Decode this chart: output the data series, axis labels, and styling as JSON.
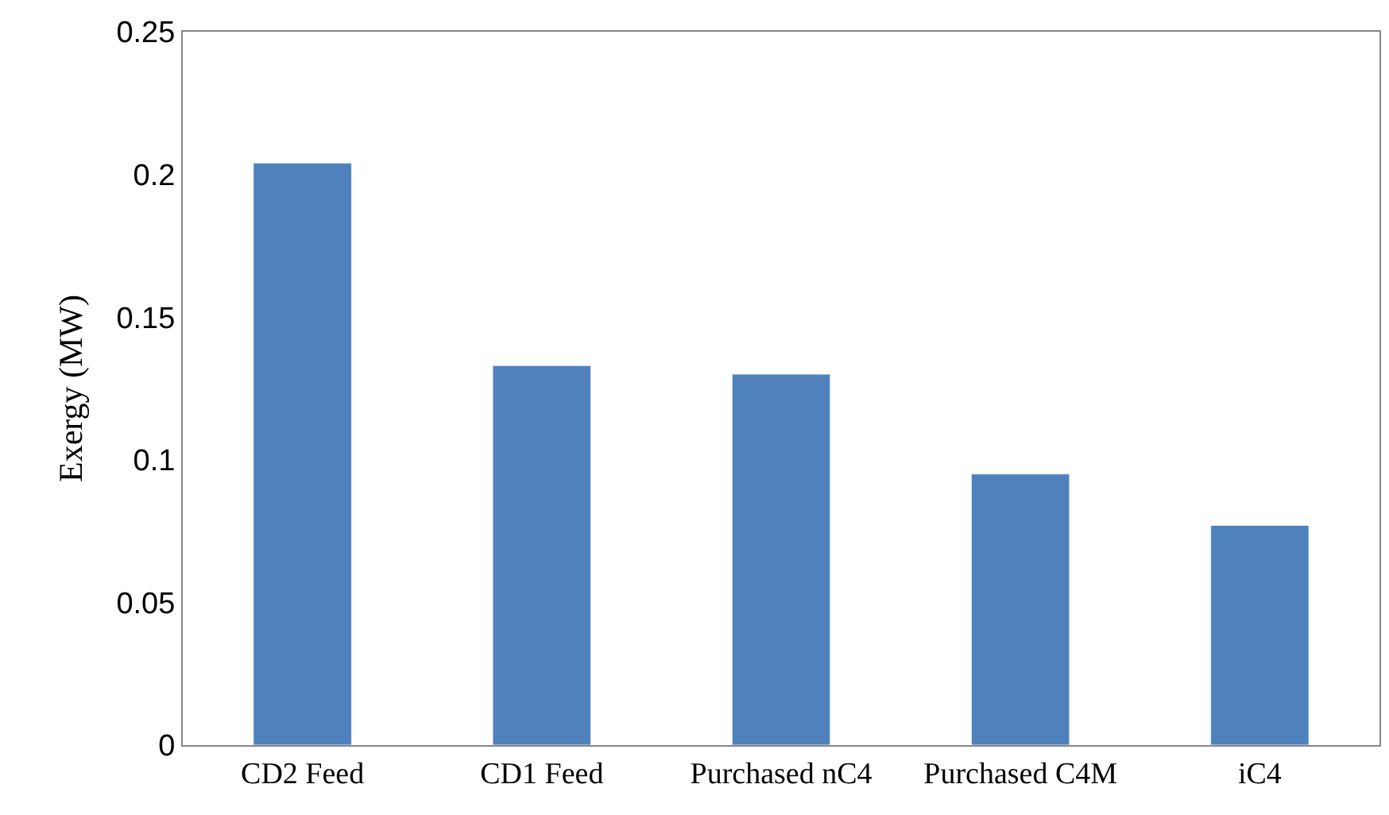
{
  "chart_data": {
    "type": "bar",
    "ylabel": "Exergy (MW)",
    "categories": [
      "CD2 Feed",
      "CD1 Feed",
      "Purchased nC4",
      "Purchased C4M",
      "iC4"
    ],
    "values": [
      0.204,
      0.133,
      0.13,
      0.095,
      0.077
    ],
    "color": "#4f81bd",
    "ylim": [
      0,
      0.25
    ],
    "yticks": [
      0,
      0.05,
      0.1,
      0.15,
      0.2,
      0.25
    ]
  }
}
